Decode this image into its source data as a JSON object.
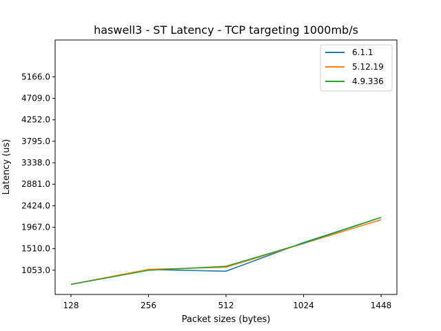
{
  "chart_data": {
    "type": "line",
    "title": "haswell3 - ST Latency - TCP targeting 1000mb/s",
    "xlabel": "Packet sizes (bytes)",
    "ylabel": "Latency (us)",
    "categories": [
      "128",
      "256",
      "512",
      "1024",
      "1448"
    ],
    "yticks": [
      1053.0,
      1510.0,
      1967.0,
      2424.0,
      2881.0,
      3338.0,
      3795.0,
      4252.0,
      4709.0,
      5166.0
    ],
    "ytick_labels": [
      "1053.0",
      "1510.0",
      "1967.0",
      "2424.0",
      "2881.0",
      "3338.0",
      "3795.0",
      "4252.0",
      "4709.0",
      "5166.0"
    ],
    "ylim": [
      536,
      5950
    ],
    "grid": false,
    "legend_position": "top-right",
    "series": [
      {
        "name": "6.1.1",
        "color": "#1f77b4",
        "values": [
          750,
          1065,
          1030,
          1640,
          2175
        ]
      },
      {
        "name": "5.12.19",
        "color": "#ff7f0e",
        "values": [
          750,
          1070,
          1115,
          1620,
          2125
        ]
      },
      {
        "name": "4.9.336",
        "color": "#2ca02c",
        "values": [
          750,
          1050,
          1135,
          1625,
          2175
        ]
      }
    ]
  }
}
